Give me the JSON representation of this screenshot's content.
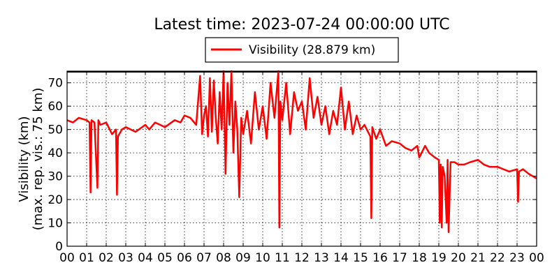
{
  "chart_data": {
    "type": "line",
    "title": "Latest time: 2023-07-24 00:00:00 UTC",
    "ylabel_line1": "Visibility (km)",
    "ylabel_line2": "(max. rep. vis.: 75 km)",
    "xlabel": "",
    "xlim": [
      0,
      24
    ],
    "ylim": [
      0,
      75
    ],
    "grid": true,
    "legend_position": "top-center",
    "x_ticks": [
      "00",
      "01",
      "02",
      "03",
      "04",
      "05",
      "06",
      "07",
      "08",
      "09",
      "10",
      "11",
      "12",
      "13",
      "14",
      "15",
      "16",
      "17",
      "18",
      "19",
      "20",
      "21",
      "22",
      "23",
      "00"
    ],
    "y_ticks": [
      0,
      10,
      20,
      30,
      40,
      50,
      60,
      70
    ],
    "series": [
      {
        "name": "Visibility (28.879 km)",
        "color": "#ff0000",
        "x": [
          0.0,
          0.3,
          0.6,
          1.0,
          1.15,
          1.2,
          1.25,
          1.4,
          1.55,
          1.6,
          1.7,
          2.0,
          2.3,
          2.5,
          2.55,
          2.6,
          2.8,
          3.0,
          3.5,
          4.0,
          4.2,
          4.5,
          5.0,
          5.5,
          5.8,
          6.0,
          6.3,
          6.6,
          6.8,
          6.9,
          7.0,
          7.1,
          7.2,
          7.3,
          7.4,
          7.5,
          7.6,
          7.7,
          7.8,
          7.9,
          8.0,
          8.1,
          8.2,
          8.3,
          8.4,
          8.5,
          8.6,
          8.7,
          8.8,
          8.9,
          9.0,
          9.2,
          9.4,
          9.6,
          9.8,
          10.0,
          10.2,
          10.4,
          10.6,
          10.8,
          10.85,
          10.9,
          11.0,
          11.2,
          11.4,
          11.6,
          11.8,
          12.0,
          12.2,
          12.4,
          12.6,
          12.8,
          13.0,
          13.2,
          13.4,
          13.6,
          13.8,
          14.0,
          14.2,
          14.4,
          14.6,
          14.8,
          15.0,
          15.2,
          15.5,
          15.55,
          15.6,
          15.8,
          16.0,
          16.3,
          16.6,
          17.0,
          17.3,
          17.6,
          17.9,
          18.0,
          18.3,
          18.5,
          18.8,
          19.0,
          19.05,
          19.1,
          19.15,
          19.2,
          19.3,
          19.4,
          19.45,
          19.5,
          19.6,
          19.8,
          20.0,
          20.3,
          20.6,
          21.0,
          21.3,
          21.6,
          22.0,
          22.3,
          22.6,
          23.0,
          23.05,
          23.1,
          23.3,
          23.6,
          23.8,
          24.0
        ],
        "y": [
          54,
          53,
          55,
          54,
          53,
          23,
          54,
          53,
          25,
          54,
          52,
          53,
          48,
          50,
          22,
          47,
          50,
          51,
          49,
          52,
          50,
          53,
          51,
          54,
          53,
          56,
          55,
          52,
          73,
          48,
          56,
          60,
          47,
          72,
          49,
          71,
          55,
          44,
          66,
          50,
          75,
          31,
          70,
          52,
          75,
          40,
          62,
          50,
          21,
          55,
          48,
          58,
          44,
          66,
          50,
          60,
          46,
          70,
          55,
          75,
          8,
          62,
          54,
          70,
          48,
          66,
          58,
          62,
          50,
          72,
          55,
          64,
          52,
          60,
          48,
          58,
          52,
          68,
          50,
          62,
          48,
          56,
          50,
          52,
          47,
          12,
          51,
          46,
          50,
          43,
          45,
          44,
          42,
          41,
          43,
          38,
          43,
          40,
          38,
          37,
          10,
          35,
          8,
          34,
          30,
          10,
          37,
          6,
          36,
          36,
          35,
          35,
          36,
          37,
          35,
          34,
          34,
          33,
          32,
          33,
          19,
          32,
          33,
          31,
          30,
          29
        ]
      }
    ]
  }
}
